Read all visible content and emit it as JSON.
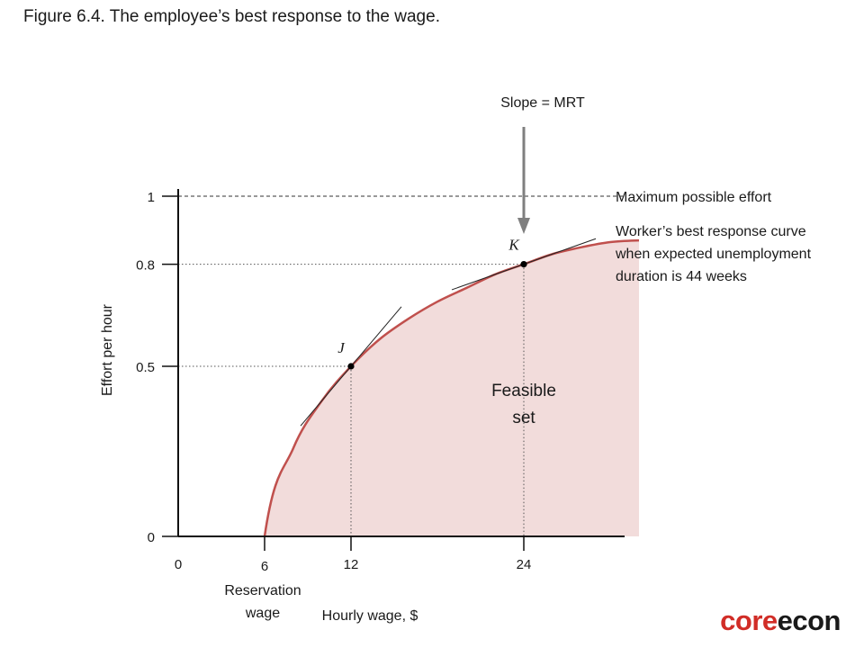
{
  "figure_title": "Figure 6.4. The employee’s best response to the wage.",
  "logo": {
    "part1": "core",
    "part2": "econ"
  },
  "chart_data": {
    "type": "line",
    "title": "",
    "xlabel": "Hourly wage, $",
    "ylabel": "Effort per hour",
    "xlim": [
      0,
      32
    ],
    "ylim": [
      0,
      1
    ],
    "x_ticks": [
      {
        "value": 0,
        "label": "0"
      },
      {
        "value": 6,
        "label": "6"
      },
      {
        "value": 12,
        "label": "12"
      },
      {
        "value": 24,
        "label": "24"
      }
    ],
    "y_ticks": [
      {
        "value": 0,
        "label": "0"
      },
      {
        "value": 0.5,
        "label": "0.5"
      },
      {
        "value": 0.8,
        "label": "0.8"
      },
      {
        "value": 1,
        "label": "1"
      }
    ],
    "series": [
      {
        "name": "Worker’s best response curve when expected unemployment duration is 44 weeks",
        "color": "#c0504d",
        "x": [
          6,
          8,
          10,
          12,
          14,
          16,
          18,
          20,
          22,
          24,
          26,
          28,
          30,
          32
        ],
        "y": [
          0,
          0.26,
          0.4,
          0.5,
          0.58,
          0.64,
          0.69,
          0.73,
          0.77,
          0.8,
          0.83,
          0.85,
          0.865,
          0.87
        ]
      }
    ],
    "max_effort": {
      "value": 1,
      "label": "Maximum possible effort"
    },
    "curve_label_lines": [
      "Worker’s best response curve",
      "when expected unemployment",
      "duration is 44 weeks"
    ],
    "feasible_set": {
      "lines": [
        "Feasible",
        "set"
      ],
      "fill": "#f2dcdb"
    },
    "points": [
      {
        "label": "J",
        "x": 12,
        "y": 0.5
      },
      {
        "label": "K",
        "x": 24,
        "y": 0.8
      }
    ],
    "annotation": {
      "text": "Slope =  MRT"
    },
    "reservation_wage": {
      "value": 6,
      "lines": [
        "Reservation",
        "wage"
      ]
    }
  }
}
